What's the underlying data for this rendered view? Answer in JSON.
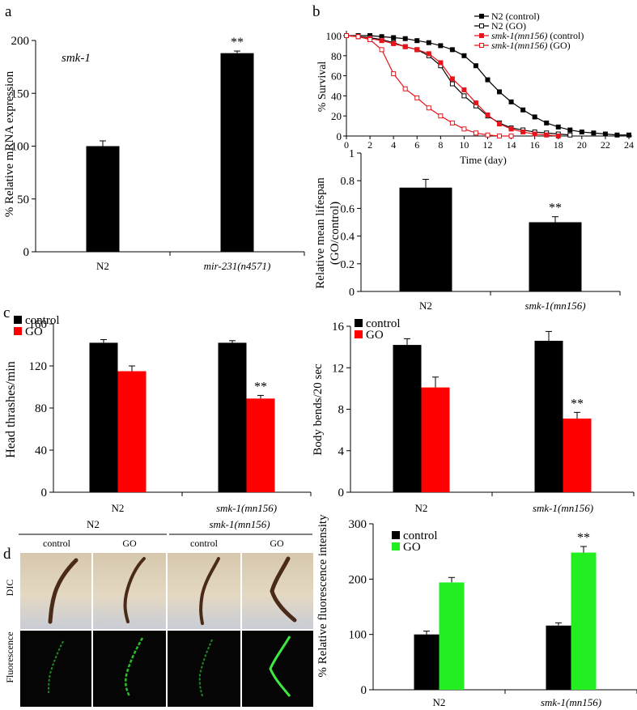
{
  "panels": {
    "a": {
      "letter": "a",
      "gene_label": "smk-1",
      "chart_data": {
        "type": "bar",
        "title": "smk-1",
        "ylabel": "% Relative mRNA expression",
        "ylim": [
          0,
          200
        ],
        "yticks": [
          "0",
          "50",
          "100",
          "150",
          "200"
        ],
        "categories": [
          "N2",
          "mir-231(n4571)"
        ],
        "values": [
          100,
          188
        ],
        "errors": [
          5,
          2
        ],
        "significance": [
          "",
          "**"
        ],
        "colors": [
          "#000000"
        ]
      }
    },
    "b": {
      "letter": "b",
      "survival": {
        "type": "line",
        "xlabel": "Time (day)",
        "ylabel": "% Survival",
        "xlim": [
          0,
          24
        ],
        "ylim": [
          0,
          100
        ],
        "xticks": [
          "0",
          "2",
          "4",
          "6",
          "8",
          "10",
          "12",
          "14",
          "16",
          "18",
          "20",
          "22",
          "24"
        ],
        "yticks": [
          "0",
          "20",
          "40",
          "60",
          "80",
          "100"
        ],
        "legend": [
          "N2 (control)",
          "N2 (GO)",
          "smk-1(mn156) (control)",
          "smk-1(mn156) (GO)"
        ],
        "legend_italic_part": [
          "",
          "",
          "smk-1(mn156)",
          "smk-1(mn156)"
        ],
        "legend_plain_part": [
          "N2 (control)",
          "N2 (GO)",
          " (control)",
          " (GO)"
        ],
        "series": [
          {
            "name": "N2 (control)",
            "color": "#000000",
            "marker": "filled-square",
            "x": [
              0,
              1,
              2,
              3,
              4,
              5,
              6,
              7,
              8,
              9,
              10,
              11,
              12,
              13,
              14,
              15,
              16,
              17,
              18,
              19,
              20,
              21,
              22,
              23,
              24
            ],
            "y": [
              100,
              100,
              100,
              99,
              98,
              97,
              95,
              93,
              90,
              86,
              80,
              70,
              56,
              44,
              34,
              26,
              19,
              13,
              9,
              6,
              4,
              3,
              2,
              1,
              1
            ]
          },
          {
            "name": "N2 (GO)",
            "color": "#000000",
            "marker": "open-square",
            "x": [
              0,
              1,
              2,
              3,
              4,
              5,
              6,
              7,
              8,
              9,
              10,
              11,
              12,
              13,
              14,
              15,
              16,
              17,
              18,
              19
            ],
            "y": [
              100,
              99,
              98,
              96,
              93,
              89,
              86,
              80,
              70,
              52,
              40,
              30,
              20,
              13,
              8,
              6,
              4,
              3,
              2,
              1
            ]
          },
          {
            "name": "smk-1(mn156) (control)",
            "color": "#e8141b",
            "marker": "filled-square",
            "x": [
              0,
              1,
              2,
              3,
              4,
              5,
              6,
              7,
              8,
              9,
              10,
              11,
              12,
              13,
              14,
              15,
              16,
              17,
              18
            ],
            "y": [
              100,
              99,
              97,
              95,
              92,
              89,
              86,
              82,
              73,
              57,
              46,
              33,
              21,
              12,
              7,
              4,
              2,
              1,
              0
            ]
          },
          {
            "name": "smk-1(mn156) (GO)",
            "color": "#e8141b",
            "marker": "open-square",
            "x": [
              0,
              1,
              2,
              3,
              4,
              5,
              6,
              7,
              8,
              9,
              10,
              11,
              12,
              13,
              14
            ],
            "y": [
              100,
              99,
              96,
              86,
              62,
              47,
              38,
              28,
              20,
              13,
              7,
              3,
              1,
              0,
              0
            ]
          }
        ]
      },
      "lifespan": {
        "type": "bar",
        "ylabel_line1": "Relative mean lifespan",
        "ylabel_line2": "(GO/control)",
        "ylim": [
          0,
          1
        ],
        "yticks": [
          "0",
          "0.2",
          "0.4",
          "0.6",
          "0.8",
          "1"
        ],
        "categories": [
          "N2",
          "smk-1(mn156)"
        ],
        "values": [
          0.75,
          0.5
        ],
        "errors": [
          0.06,
          0.04
        ],
        "significance": [
          "",
          "**"
        ]
      }
    },
    "c": {
      "letter": "c",
      "thrashes": {
        "type": "bar",
        "ylabel": "Head thrashes/min",
        "ylim": [
          0,
          160
        ],
        "yticks": [
          "0",
          "40",
          "80",
          "120",
          "160"
        ],
        "categories": [
          "N2",
          "smk-1(mn156)"
        ],
        "legend": [
          "control",
          "GO"
        ],
        "series": [
          {
            "name": "control",
            "color": "#000000",
            "values": [
              142,
              142
            ],
            "errors": [
              3,
              2
            ],
            "significance": [
              "",
              ""
            ]
          },
          {
            "name": "GO",
            "color": "#ff0000",
            "values": [
              115,
              89
            ],
            "errors": [
              5,
              3
            ],
            "significance": [
              "",
              "**"
            ]
          }
        ]
      },
      "bends": {
        "type": "bar",
        "ylabel": "Body bends/20 sec",
        "ylim": [
          0,
          16
        ],
        "yticks": [
          "0",
          "4",
          "8",
          "12",
          "16"
        ],
        "categories": [
          "N2",
          "smk-1(mn156)"
        ],
        "legend": [
          "control",
          "GO"
        ],
        "series": [
          {
            "name": "control",
            "color": "#000000",
            "values": [
              14.2,
              14.6
            ],
            "errors": [
              0.6,
              0.9
            ],
            "significance": [
              "",
              ""
            ]
          },
          {
            "name": "GO",
            "color": "#ff0000",
            "values": [
              10.1,
              7.1
            ],
            "errors": [
              1.0,
              0.6
            ],
            "significance": [
              "",
              "**"
            ]
          }
        ]
      }
    },
    "d": {
      "letter": "d",
      "groups": [
        "N2",
        "smk-1(mn156)"
      ],
      "columns": [
        "control",
        "GO",
        "control",
        "GO"
      ],
      "row_labels": [
        "DIC",
        "Fluorescence"
      ],
      "fluorescence": {
        "type": "bar",
        "ylabel": "% Relative fluorescence intensity",
        "ylim": [
          0,
          300
        ],
        "yticks": [
          "0",
          "100",
          "200",
          "300"
        ],
        "categories": [
          "N2",
          "smk-1(mn156)"
        ],
        "legend": [
          "control",
          "GO"
        ],
        "series": [
          {
            "name": "control",
            "color": "#000000",
            "values": [
              100,
              116
            ],
            "errors": [
              6,
              5
            ],
            "significance": [
              "",
              ""
            ]
          },
          {
            "name": "GO",
            "color": "#22ee22",
            "values": [
              194,
              248
            ],
            "errors": [
              9,
              11
            ],
            "significance": [
              "",
              "**"
            ]
          }
        ]
      }
    }
  }
}
